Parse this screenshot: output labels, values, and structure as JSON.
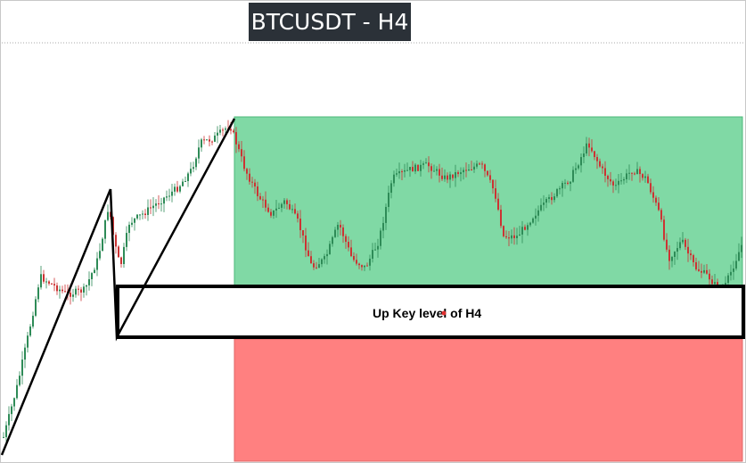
{
  "title": "BTCUSDT - H4",
  "key_level_label": "Up Key level of H4",
  "colors": {
    "supply_zone": "#80d9a5",
    "demand_zone": "#ff8080",
    "candle_up": "#2e8b57",
    "candle_down": "#cc3333",
    "trendline": "#000000",
    "title_bg": "#2b3138"
  },
  "chart_data": {
    "type": "candlestick",
    "title": "BTCUSDT - H4",
    "annotations": [
      "Up Key level of H4"
    ],
    "grid": false
  }
}
